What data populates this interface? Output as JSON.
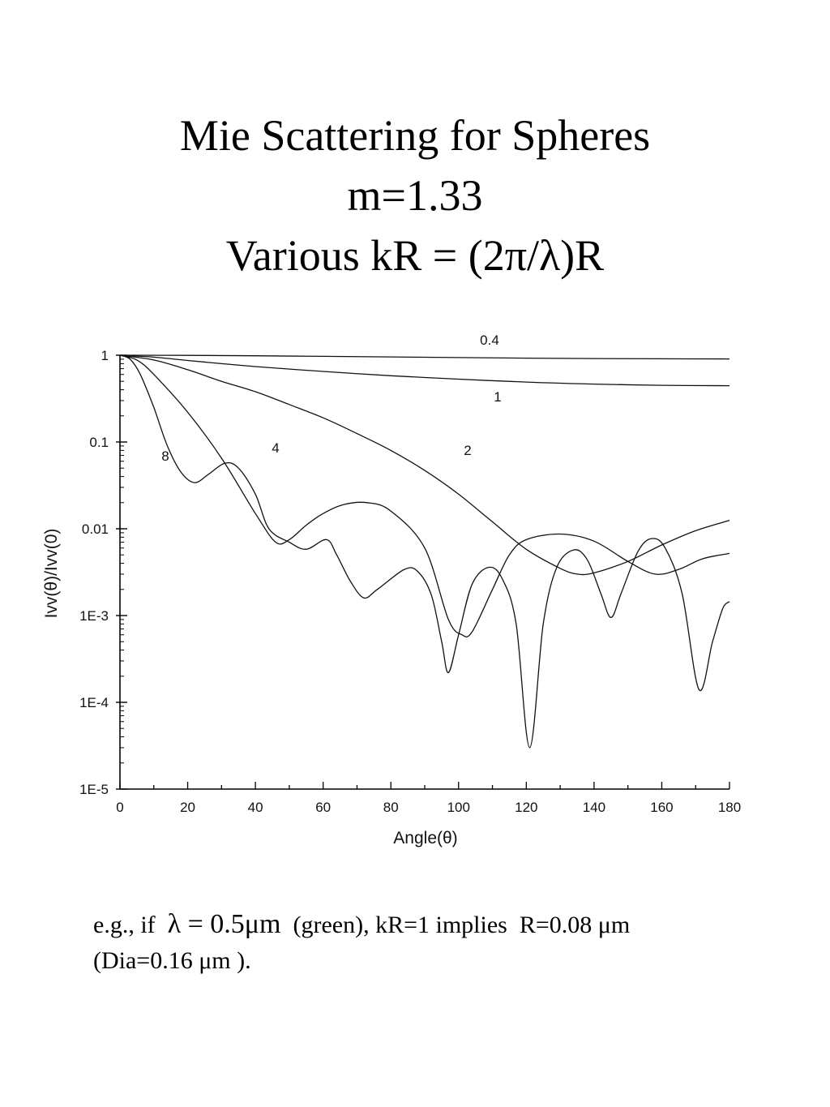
{
  "slide": {
    "title_line1": "Mie Scattering for Spheres",
    "title_line2": "m=1.33",
    "title_line3": "Various kR = (2π/λ)R"
  },
  "footnote": {
    "line1_prefix": "e.g., if ",
    "line1_equation": "λ = 0.5μm",
    "line1_middle": " (green), kR=1 implies  R=0.08",
    "line1_unit": "μm",
    "line2": "(Dia=0.16 μm )."
  },
  "chart_data": {
    "type": "line",
    "xlabel": "Angle(θ)",
    "ylabel": "Ivv(θ)/Ivv(0)",
    "xlim": [
      0,
      180
    ],
    "ylim": [
      1e-05,
      1
    ],
    "yscale": "log",
    "grid": false,
    "x_ticks": [
      0,
      20,
      40,
      60,
      80,
      100,
      120,
      140,
      160,
      180
    ],
    "x_tick_labels": [
      "0",
      "20",
      "40",
      "60",
      "80",
      "100",
      "120",
      "140",
      "160",
      "180"
    ],
    "y_ticks": [
      1,
      0.1,
      0.01,
      0.001,
      0.0001,
      1e-05
    ],
    "y_tick_labels": [
      "1",
      "0.1",
      "0.01",
      "1E-3",
      "1E-4",
      "1E-5"
    ],
    "series": [
      {
        "name": "0.4",
        "points": [
          [
            0,
            1
          ],
          [
            20,
            0.995
          ],
          [
            40,
            0.985
          ],
          [
            60,
            0.97
          ],
          [
            80,
            0.955
          ],
          [
            100,
            0.94
          ],
          [
            120,
            0.925
          ],
          [
            140,
            0.915
          ],
          [
            160,
            0.91
          ],
          [
            180,
            0.905
          ]
        ]
      },
      {
        "name": "1",
        "points": [
          [
            0,
            1
          ],
          [
            10,
            0.95
          ],
          [
            20,
            0.87
          ],
          [
            30,
            0.8
          ],
          [
            40,
            0.74
          ],
          [
            60,
            0.65
          ],
          [
            80,
            0.58
          ],
          [
            100,
            0.53
          ],
          [
            120,
            0.49
          ],
          [
            140,
            0.465
          ],
          [
            160,
            0.45
          ],
          [
            180,
            0.445
          ]
        ]
      },
      {
        "name": "2",
        "points": [
          [
            0,
            1
          ],
          [
            10,
            0.88
          ],
          [
            20,
            0.68
          ],
          [
            30,
            0.5
          ],
          [
            40,
            0.38
          ],
          [
            50,
            0.27
          ],
          [
            60,
            0.19
          ],
          [
            70,
            0.125
          ],
          [
            80,
            0.08
          ],
          [
            90,
            0.047
          ],
          [
            100,
            0.025
          ],
          [
            110,
            0.012
          ],
          [
            120,
            0.0058
          ],
          [
            130,
            0.0035
          ],
          [
            135,
            0.003
          ],
          [
            140,
            0.0031
          ],
          [
            150,
            0.0042
          ],
          [
            160,
            0.0065
          ],
          [
            170,
            0.0095
          ],
          [
            180,
            0.0125
          ]
        ]
      },
      {
        "name": "4",
        "points": [
          [
            0,
            1
          ],
          [
            5,
            0.88
          ],
          [
            10,
            0.6
          ],
          [
            20,
            0.22
          ],
          [
            30,
            0.065
          ],
          [
            40,
            0.015
          ],
          [
            46,
            0.007
          ],
          [
            50,
            0.0075
          ],
          [
            55,
            0.011
          ],
          [
            60,
            0.015
          ],
          [
            66,
            0.019
          ],
          [
            73,
            0.02
          ],
          [
            80,
            0.016
          ],
          [
            90,
            0.006
          ],
          [
            97,
            0.0009
          ],
          [
            101,
            0.0006
          ],
          [
            104,
            0.00065
          ],
          [
            110,
            0.002
          ],
          [
            115,
            0.005
          ],
          [
            120,
            0.0075
          ],
          [
            130,
            0.0087
          ],
          [
            140,
            0.0072
          ],
          [
            150,
            0.0042
          ],
          [
            158,
            0.003
          ],
          [
            165,
            0.0034
          ],
          [
            172,
            0.0045
          ],
          [
            180,
            0.0052
          ]
        ]
      },
      {
        "name": "8",
        "points": [
          [
            0,
            1
          ],
          [
            3,
            0.9
          ],
          [
            6,
            0.6
          ],
          [
            10,
            0.25
          ],
          [
            14,
            0.09
          ],
          [
            18,
            0.045
          ],
          [
            22,
            0.034
          ],
          [
            26,
            0.042
          ],
          [
            31,
            0.057
          ],
          [
            35,
            0.05
          ],
          [
            40,
            0.025
          ],
          [
            44,
            0.01
          ],
          [
            50,
            0.007
          ],
          [
            55,
            0.0058
          ],
          [
            61,
            0.0075
          ],
          [
            64,
            0.005
          ],
          [
            68,
            0.0025
          ],
          [
            72,
            0.0016
          ],
          [
            76,
            0.002
          ],
          [
            84,
            0.0034
          ],
          [
            88,
            0.0032
          ],
          [
            92,
            0.0017
          ],
          [
            95,
            0.0005
          ],
          [
            97,
            0.00022
          ],
          [
            100,
            0.0006
          ],
          [
            104,
            0.0023
          ],
          [
            109,
            0.0036
          ],
          [
            113,
            0.0026
          ],
          [
            117,
            0.0008
          ],
          [
            121,
            3e-05
          ],
          [
            125,
            0.0008
          ],
          [
            129,
            0.0036
          ],
          [
            134,
            0.0057
          ],
          [
            138,
            0.0044
          ],
          [
            142,
            0.0018
          ],
          [
            145,
            0.00095
          ],
          [
            148,
            0.0018
          ],
          [
            153,
            0.0055
          ],
          [
            157,
            0.0077
          ],
          [
            161,
            0.006
          ],
          [
            166,
            0.0018
          ],
          [
            171,
            0.00014
          ],
          [
            175,
            0.0005
          ],
          [
            178,
            0.0012
          ],
          [
            180,
            0.00145
          ]
        ]
      }
    ]
  }
}
